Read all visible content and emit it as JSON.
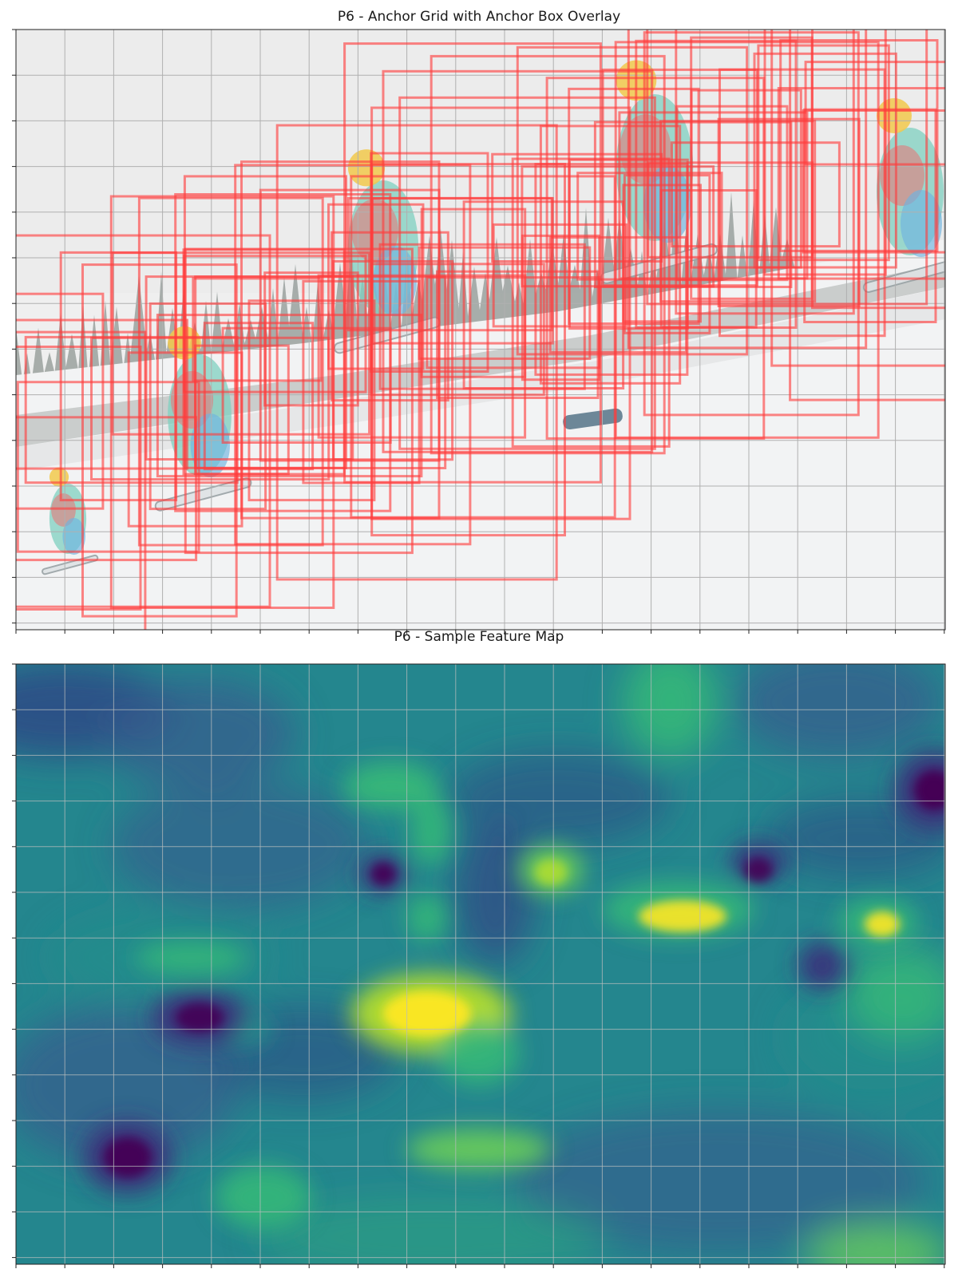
{
  "chart_data": [
    {
      "type": "image",
      "title": "P6 - Anchor Grid with Anchor Box Overlay",
      "grid": true,
      "x_ticks": 19,
      "y_ticks": 13,
      "tick_labels_shown": false,
      "background": "faded photo of snowboarder sequence jumping over snowy slope with pine trees",
      "box_color": "#ff3b3b",
      "anchor_boxes_count": 100
    },
    {
      "type": "heatmap",
      "title": "P6 - Sample Feature Map",
      "grid": true,
      "colormap": "viridis",
      "x_ticks": 19,
      "y_ticks": 13,
      "tick_labels_shown": false,
      "colors": {
        "low": "#440154",
        "mid": "#21918c",
        "high": "#fde725",
        "base": "#2a8a8a"
      }
    }
  ]
}
